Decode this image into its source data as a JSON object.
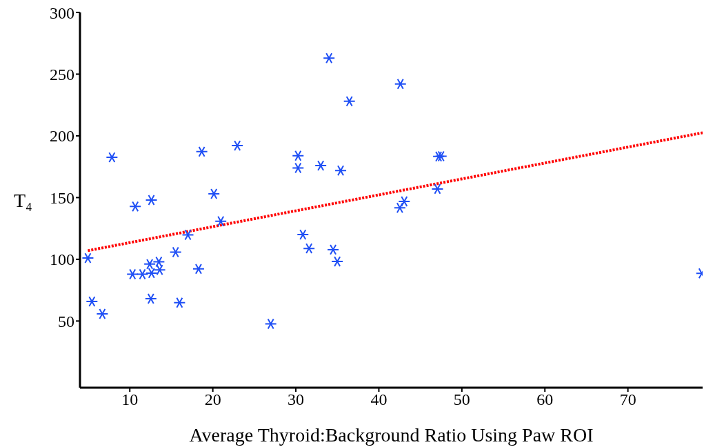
{
  "chart_data": {
    "type": "scatter",
    "xlabel": "Average Thyroid:Background Ratio Using Paw ROI",
    "ylabel": "T₄",
    "xlim": [
      4,
      79
    ],
    "xticks": [
      10,
      20,
      30,
      40,
      50,
      60,
      70
    ],
    "ylim": [
      -4,
      300
    ],
    "yticks": [
      50,
      100,
      150,
      200,
      250,
      300
    ],
    "grid": false,
    "legend": false,
    "marker": "cross",
    "series": [
      {
        "color": "#1f4ff5",
        "x": [
          7.85,
          10.66,
          12.6,
          18.67,
          20.13,
          20.96,
          22.95,
          30.27,
          30.27,
          33.0,
          34.0,
          35.4,
          36.45,
          42.6,
          47.5,
          47.2,
          47.06,
          43.06,
          42.53,
          4.95,
          5.44,
          6.69,
          10.33,
          11.52,
          12.4,
          12.62,
          13.5,
          13.6,
          12.54,
          15.52,
          15.99,
          17.0,
          18.28,
          26.98,
          30.85,
          31.59,
          34.49,
          34.99,
          78.9
        ],
        "values": [
          182.6,
          142.8,
          148,
          187.2,
          153,
          130.8,
          192.1,
          183.9,
          174,
          175.9,
          263,
          171.9,
          228,
          242,
          183.5,
          183.3,
          157,
          146.9,
          141.7,
          101,
          65.8,
          55.8,
          87.9,
          87.9,
          96.1,
          88.8,
          98,
          91.4,
          68.1,
          105.8,
          64.9,
          119.8,
          92.2,
          47.7,
          120,
          108.8,
          107.8,
          98.2,
          88.6
        ]
      },
      {
        "type": "line",
        "color": "#ff0000",
        "line_style": "dotted",
        "marker": "none",
        "x": [
          4.95,
          79
        ],
        "values": [
          107,
          202.5
        ]
      }
    ]
  }
}
